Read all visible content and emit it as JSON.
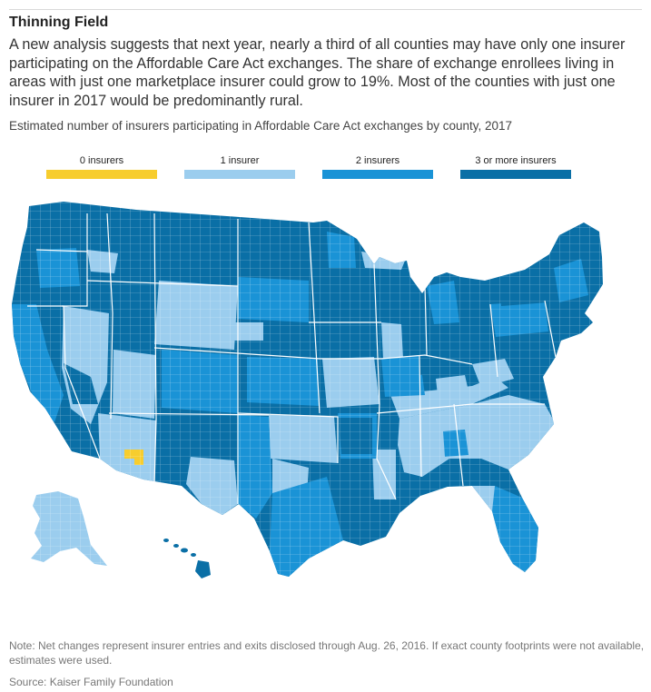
{
  "header": {
    "title": "Thinning Field",
    "dek": "A new analysis suggests that next year, nearly a third of all counties may have only one insurer participating on the Affordable Care Act exchanges. The share of exchange enrollees living in areas with just one marketplace insurer could grow to 19%. Most of the counties with just one insurer in 2017 would be predominantly rural.",
    "subhead": "Estimated number of insurers participating in Affordable Care Act exchanges by county, 2017"
  },
  "legend": [
    {
      "label": "0 insurers",
      "color": "#f7cd2e"
    },
    {
      "label": "1 insurer",
      "color": "#9bcdee"
    },
    {
      "label": "2 insurers",
      "color": "#1a93d6"
    },
    {
      "label": "3 or more insurers",
      "color": "#0a6fa6"
    }
  ],
  "map": {
    "region": "United States (counties)",
    "colors": {
      "c0": "#f7cd2e",
      "c1": "#9bcdee",
      "c2": "#1a93d6",
      "c3": "#0a6fa6",
      "border": "#ffffff"
    }
  },
  "footer": {
    "note": "Note: Net changes represent insurer entries and exits disclosed through Aug. 26, 2016. If exact county footprints were not available, estimates were used.",
    "source": "Source: Kaiser Family Foundation"
  }
}
